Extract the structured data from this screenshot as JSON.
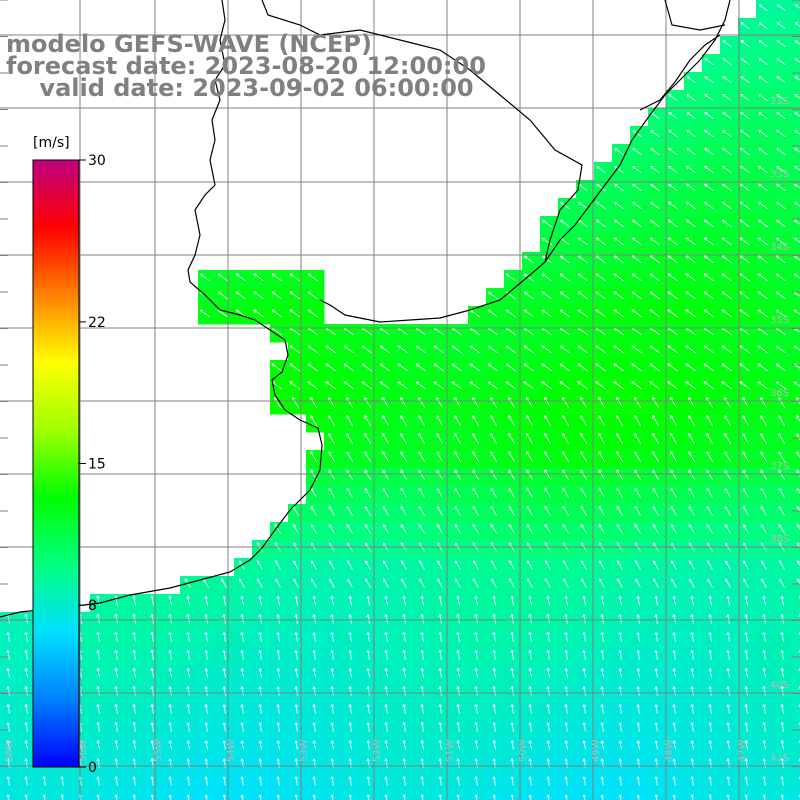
{
  "title": {
    "model": "modelo GEFS-WAVE (NCEP)",
    "forecast": "forecast date: 2023-08-20 12:00:00",
    "valid": "    valid date: 2023-09-02 06:00:00"
  },
  "colorbar": {
    "units": "[m/s]",
    "ticks": [
      {
        "label": "30",
        "value": 30
      },
      {
        "label": "22",
        "value": 22
      },
      {
        "label": "15",
        "value": 15
      },
      {
        "label": "8",
        "value": 8
      },
      {
        "label": "0",
        "value": 0
      }
    ],
    "range": [
      0,
      30
    ],
    "colors": [
      "#0000ff",
      "#0080ff",
      "#00e0ff",
      "#00ff80",
      "#00ff00",
      "#a0ff00",
      "#ffff00",
      "#ff8000",
      "#ff0000",
      "#c00080"
    ]
  },
  "map": {
    "lat_labels": [
      "31S",
      "33S",
      "34S",
      "35S",
      "36S",
      "37S",
      "38S",
      "40S",
      "41S"
    ],
    "lon_labels": [
      "58W",
      "56W",
      "55W",
      "54W",
      "53W",
      "52W",
      "51W",
      "50W",
      "49W",
      "48W",
      "47W"
    ],
    "land_color": "#ffffff",
    "grid_color": "#808080",
    "coast_color": "#000000"
  }
}
